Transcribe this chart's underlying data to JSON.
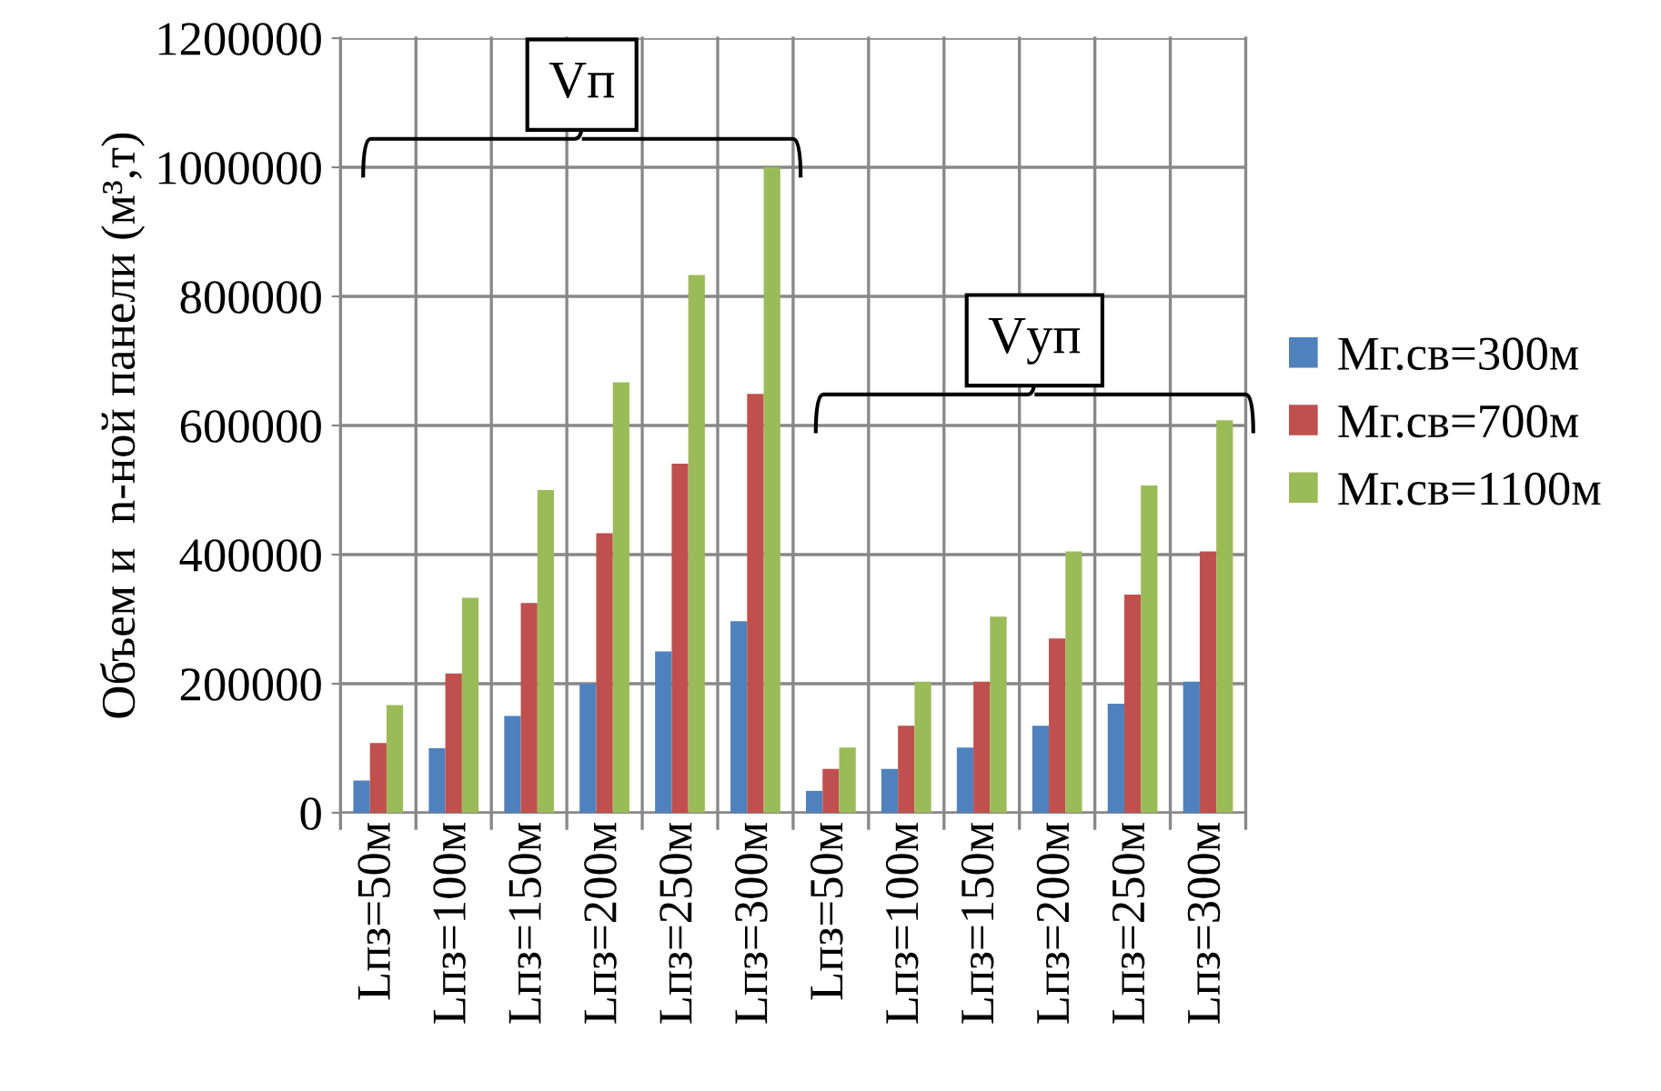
{
  "chart_data": {
    "type": "bar",
    "ylabel": "Объем и  n-ной панели (м³,т)",
    "categories": [
      "Lпз=50м",
      "Lпз=100м",
      "Lпз=150м",
      "Lпз=200м",
      "Lпз=250м",
      "Lпз=300м",
      "Lпз=50м",
      "Lпз=100м",
      "Lпз=150м",
      "Lпз=200м",
      "Lпз=250м",
      "Lпз=300м"
    ],
    "series": [
      {
        "name": "Мг.св=300м",
        "color": "#4f81bd",
        "values": [
          50000,
          100000,
          150000,
          200000,
          250000,
          297000,
          34000,
          68000,
          101000,
          135000,
          169000,
          203000
        ]
      },
      {
        "name": "Мг.св=700м",
        "color": "#c0504d",
        "values": [
          108000,
          216000,
          325000,
          433000,
          541000,
          649000,
          68000,
          135000,
          203000,
          270000,
          338000,
          405000
        ]
      },
      {
        "name": "Мг.св=1100м",
        "color": "#9bbb59",
        "values": [
          167000,
          333000,
          500000,
          667000,
          833000,
          1000000,
          101000,
          203000,
          304000,
          405000,
          507000,
          608000
        ]
      }
    ],
    "ylim": [
      0,
      1200000
    ],
    "yticks": [
      0,
      200000,
      400000,
      600000,
      800000,
      1000000,
      1200000
    ],
    "grid": true,
    "legend": "right",
    "annotations": [
      "Vп",
      "Vуп"
    ]
  }
}
